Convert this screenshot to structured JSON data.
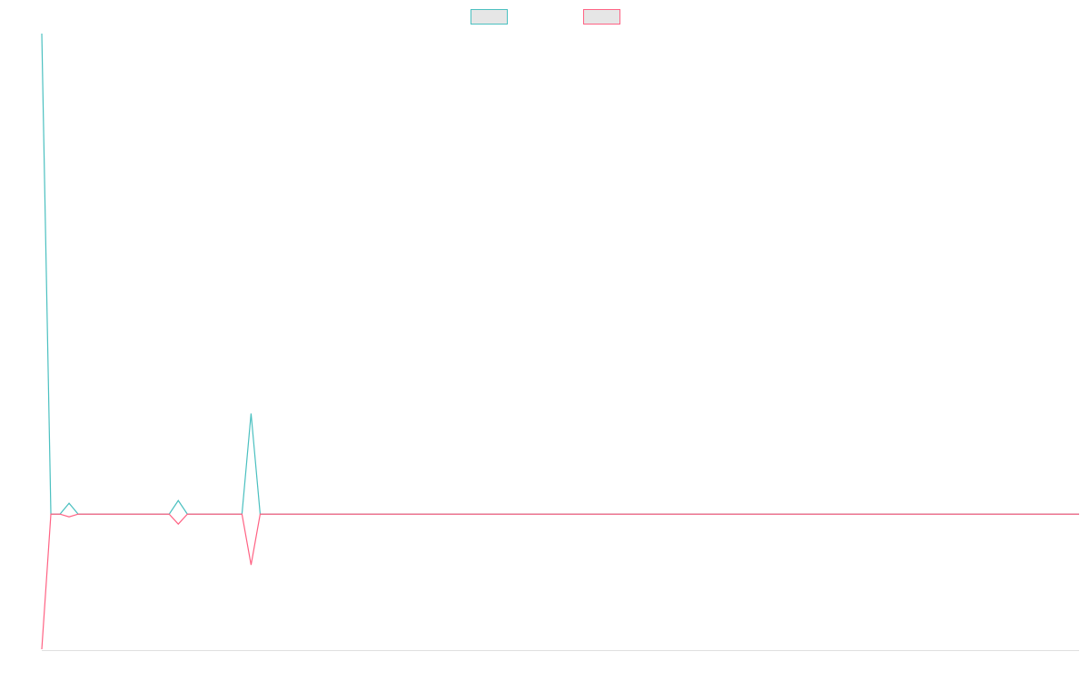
{
  "chart_data": {
    "type": "line",
    "ylim": [
      -150,
      530
    ],
    "legend": "top",
    "series": [
      {
        "color": "#4bc0c0",
        "values": [
          530,
          0,
          0,
          12,
          0,
          0,
          0,
          0,
          0,
          0,
          0,
          0,
          0,
          0,
          0,
          15,
          0,
          0,
          0,
          0,
          0,
          0,
          0,
          111,
          0,
          0,
          0,
          0,
          0,
          0,
          0,
          0,
          0,
          0,
          0,
          0,
          0,
          0,
          0,
          0,
          0,
          0,
          0,
          0,
          0,
          0,
          0,
          0,
          0,
          0,
          0,
          0,
          0,
          0,
          0,
          0,
          0,
          0,
          0,
          0,
          0,
          0,
          0,
          0,
          0,
          0,
          0,
          0,
          0,
          0,
          0,
          0,
          0,
          0,
          0,
          0,
          0,
          0,
          0,
          0,
          0,
          0,
          0,
          0,
          0,
          0,
          0,
          0,
          0,
          0,
          0,
          0,
          0,
          0,
          0,
          0,
          0,
          0,
          0,
          0,
          0,
          0,
          0,
          0,
          0,
          0,
          0,
          0,
          0,
          0,
          0,
          0,
          0,
          0,
          0
        ]
      },
      {
        "color": "#ff6384",
        "values": [
          -149,
          0,
          0,
          -3,
          0,
          0,
          0,
          0,
          0,
          0,
          0,
          0,
          0,
          0,
          0,
          -11,
          0,
          0,
          0,
          0,
          0,
          0,
          0,
          -56,
          0,
          0,
          0,
          0,
          0,
          0,
          0,
          0,
          0,
          0,
          0,
          0,
          0,
          0,
          0,
          0,
          0,
          0,
          0,
          0,
          0,
          0,
          0,
          0,
          0,
          0,
          0,
          0,
          0,
          0,
          0,
          0,
          0,
          0,
          0,
          0,
          0,
          0,
          0,
          0,
          0,
          0,
          0,
          0,
          0,
          0,
          0,
          0,
          0,
          0,
          0,
          0,
          0,
          0,
          0,
          0,
          0,
          0,
          0,
          0,
          0,
          0,
          0,
          0,
          0,
          0,
          0,
          0,
          0,
          0,
          0,
          0,
          0,
          0,
          0,
          0,
          0,
          0,
          0,
          0,
          0,
          0,
          0,
          0,
          0,
          0,
          0,
          0,
          0,
          0,
          0
        ]
      }
    ]
  }
}
